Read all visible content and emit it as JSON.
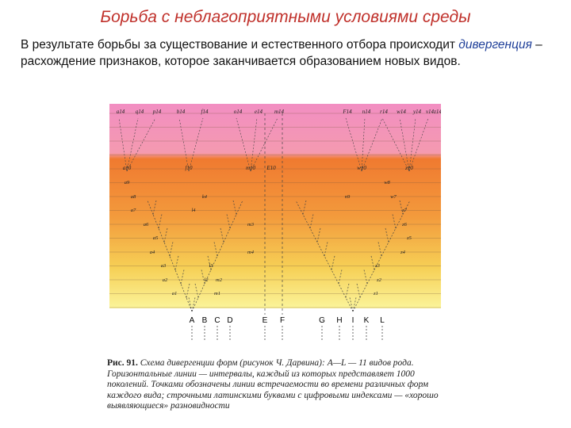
{
  "slide": {
    "title": "Борьба с неблагоприятными условиями среды",
    "paragraph": {
      "part1": "В результате борьбы за существование и естественного отбора происходит ",
      "term": "дивергенция",
      "part2": " – расхождение признаков, которое заканчивается образованием новых видов."
    }
  },
  "figure": {
    "top_labels": [
      "a14",
      "q14",
      "p14",
      "b14",
      "f14",
      "o14",
      "e14",
      "m14",
      "F14",
      "n14",
      "r14",
      "w14",
      "y14",
      "v14",
      "z14"
    ],
    "level10_labels": [
      "a10",
      "f10",
      "m10",
      "E10",
      "w10",
      "z10"
    ],
    "mid_labels": [
      "a9",
      "a8",
      "a7",
      "a6",
      "a5",
      "a4",
      "a3",
      "a2",
      "a1",
      "k4",
      "l4",
      "m4",
      "m3",
      "m2",
      "m1",
      "n9",
      "w8",
      "w7",
      "z7",
      "z6",
      "z5",
      "z4",
      "z3",
      "z2",
      "z1",
      "l3",
      "l2"
    ],
    "base_labels": [
      "A",
      "B",
      "C",
      "D",
      "E",
      "F",
      "G",
      "H",
      "I",
      "K",
      "L"
    ],
    "caption": {
      "number": "Рис. 91.",
      "text": " Схема дивергенции форм (рисунок Ч. Дарвина): А—L — 11 видов рода. Горизонтальные линии — интервалы, каждый из которых представляет 1000 поколений. Точками обозначены линии встречаемости во времени различных форм каждого вида; строчными латинскими буквами с цифровыми индексами — «хорошо выявляющиеся» разновидности"
    }
  },
  "colors": {
    "title": "#c0312b",
    "term": "#1f3f99",
    "band_top": "#f090c0",
    "band_mid": "#f08838",
    "band_bottom": "#f8f088",
    "lines": "#444444"
  }
}
